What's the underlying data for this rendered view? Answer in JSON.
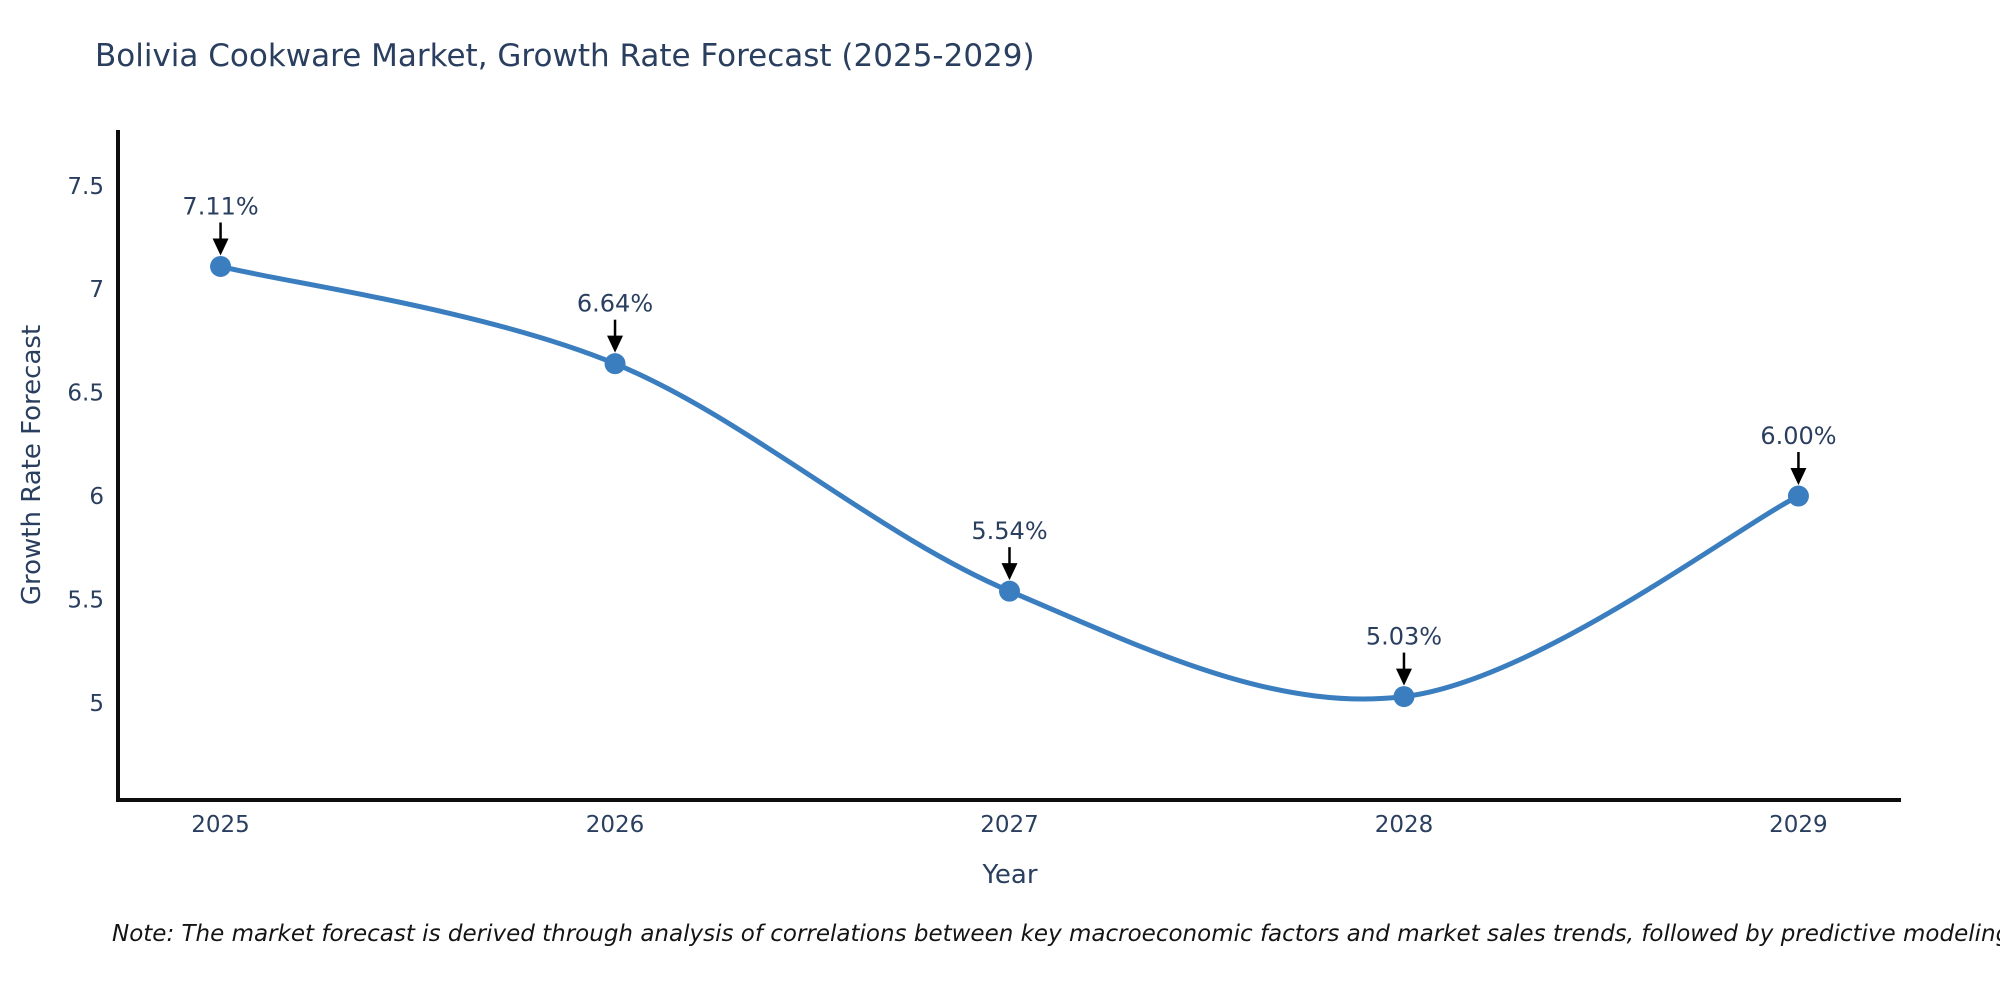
{
  "page": {
    "background": "#ffffff"
  },
  "note": {
    "text": "Note: The market forecast is derived through analysis of correlations between key macroeconomic factors and market sales trends, followed by predictive modeling to project future sales"
  },
  "chart_data": {
    "type": "line",
    "title": "Bolivia Cookware Market, Growth Rate Forecast (2025-2029)",
    "xlabel": "Year",
    "ylabel": "Growth Rate Forecast",
    "x": [
      2025,
      2026,
      2027,
      2028,
      2029
    ],
    "values": [
      7.11,
      6.64,
      5.54,
      5.03,
      6.0
    ],
    "point_labels": [
      "7.11%",
      "6.64%",
      "5.54%",
      "5.03%",
      "6.00%"
    ],
    "series_name": "Growth Rate Forecast",
    "line_shape": "spline",
    "markers": true,
    "grid": false,
    "legend_visible": false,
    "xlim": [
      2024.74,
      2029.26
    ],
    "ylim": [
      4.53,
      7.77
    ],
    "xticks": [
      2025,
      2026,
      2027,
      2028,
      2029
    ],
    "xtick_labels": [
      "2025",
      "2026",
      "2027",
      "2028",
      "2029"
    ],
    "yticks": [
      5,
      5.5,
      6,
      6.5,
      7,
      7.5
    ],
    "ytick_labels": [
      "5",
      "5.5",
      "6",
      "6.5",
      "7",
      "7.5"
    ],
    "annotations_arrow": true,
    "colors": {
      "line": "#3a7ebf",
      "marker": "#3a7ebf",
      "axis_line": "#0d0d0d",
      "tick_text": "#2a3f5f",
      "annotation_text": "#2a3f5f",
      "annotation_arrow": "#000000",
      "title_text": "#2a3f5f"
    }
  }
}
